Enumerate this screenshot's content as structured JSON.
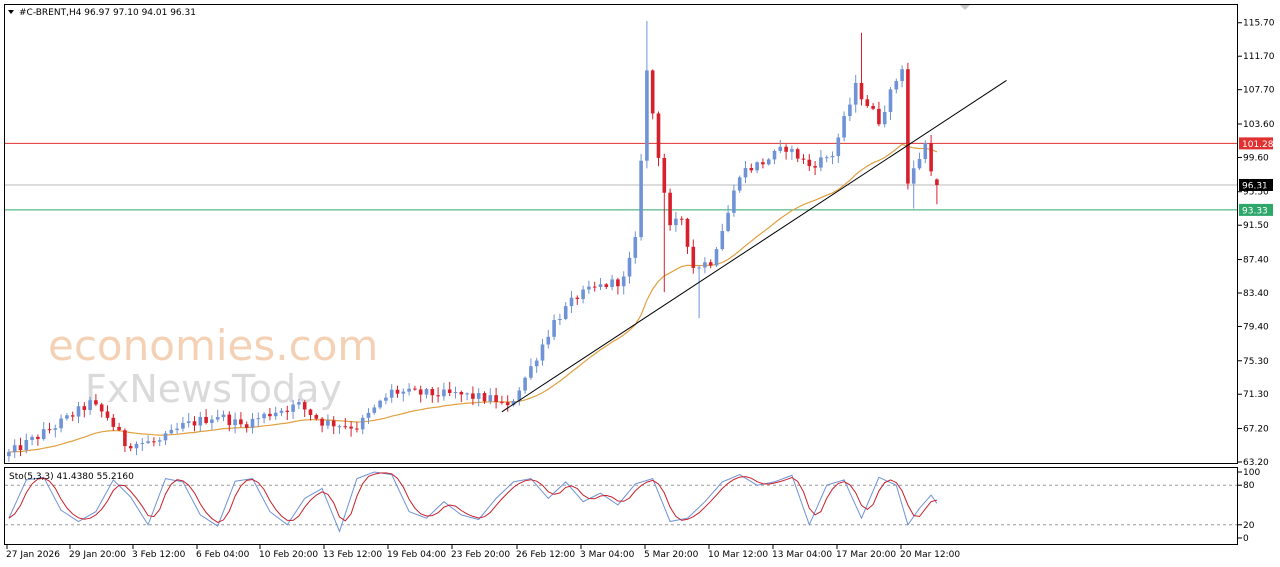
{
  "header": {
    "symbol_line": "#C-BRENT,H4  96.97 97.10 94.01 96.31"
  },
  "watermark": {
    "line1": "economies.com",
    "line2": "FxNewsToday"
  },
  "colors": {
    "bull": "#6f93d6",
    "bear": "#d8202c",
    "ma": "#e0a040",
    "resistance": "#e03030",
    "support": "#2ea86a",
    "price_line": "#b8b8b8",
    "trendline": "#000000",
    "stoch_main": "#6f93d6",
    "stoch_signal": "#c8202c"
  },
  "chart_data": [
    {
      "type": "candlestick",
      "title": "#C-BRENT,H4  96.97 97.10 94.01 96.31",
      "ylim": [
        63.2,
        117.7
      ],
      "y_ticks": [
        "115.70",
        "111.70",
        "107.70",
        "103.60",
        "99.60",
        "95.50",
        "91.50",
        "87.40",
        "83.40",
        "79.40",
        "75.30",
        "71.30",
        "67.20",
        "63.20"
      ],
      "x_ticks": [
        "27 Jan 2026",
        "29 Jan 20:00",
        "3 Feb 12:00",
        "6 Feb 04:00",
        "10 Feb 20:00",
        "13 Feb 12:00",
        "19 Feb 04:00",
        "23 Feb 20:00",
        "26 Feb 12:00",
        "3 Mar 04:00",
        "5 Mar 20:00",
        "10 Mar 12:00",
        "13 Mar 04:00",
        "17 Mar 20:00",
        "20 Mar 12:00"
      ],
      "horizontal_levels": [
        {
          "label": "101.28",
          "value": 101.28,
          "kind": "resistance"
        },
        {
          "label": "96.31",
          "value": 96.31,
          "kind": "current"
        },
        {
          "label": "93.33",
          "value": 93.33,
          "kind": "support"
        }
      ],
      "trendline": {
        "from_index": 85,
        "from_price": 69.2,
        "to_index": 172,
        "to_price": 108.8
      },
      "last": {
        "open": 96.97,
        "high": 97.1,
        "low": 94.01,
        "close": 96.31
      },
      "path": [
        [
          0,
          64.2
        ],
        [
          8,
          67.5
        ],
        [
          14,
          70.2
        ],
        [
          17,
          68.6
        ],
        [
          20,
          65.4
        ],
        [
          26,
          65.6
        ],
        [
          30,
          67.5
        ],
        [
          36,
          68.8
        ],
        [
          40,
          67.6
        ],
        [
          46,
          69.3
        ],
        [
          50,
          70.0
        ],
        [
          54,
          68.0
        ],
        [
          60,
          67.4
        ],
        [
          66,
          71.6
        ],
        [
          70,
          71.4
        ],
        [
          78,
          71.2
        ],
        [
          84,
          70.6
        ],
        [
          86,
          69.6
        ],
        [
          90,
          74.5
        ],
        [
          94,
          80.0
        ],
        [
          98,
          83.0
        ],
        [
          102,
          84.2
        ],
        [
          106,
          85.0
        ],
        [
          108,
          89.5
        ],
        [
          110,
          109.8
        ],
        [
          112,
          100.0
        ],
        [
          114,
          91.0
        ],
        [
          116,
          92.4
        ],
        [
          118,
          86.5
        ],
        [
          121,
          87.2
        ],
        [
          124,
          93.0
        ],
        [
          126,
          97.8
        ],
        [
          130,
          99.0
        ],
        [
          134,
          100.8
        ],
        [
          138,
          98.6
        ],
        [
          142,
          100.0
        ],
        [
          146,
          108.0
        ],
        [
          150,
          104.0
        ],
        [
          154,
          110.5
        ],
        [
          155,
          96.5
        ],
        [
          158,
          101.2
        ],
        [
          160,
          95.8
        ]
      ]
    },
    {
      "type": "line",
      "title": "Sto(5,3,3) 41.4380 55.2160",
      "ylim": [
        0,
        100
      ],
      "y_ticks": [
        "100",
        "80",
        "20",
        "0"
      ],
      "levels": [
        80,
        20
      ],
      "series": [
        {
          "name": "main",
          "last": 41.438
        },
        {
          "name": "signal",
          "last": 55.216
        }
      ],
      "main_path": [
        [
          0,
          30
        ],
        [
          3,
          88
        ],
        [
          6,
          92
        ],
        [
          9,
          42
        ],
        [
          12,
          25
        ],
        [
          15,
          40
        ],
        [
          18,
          88
        ],
        [
          21,
          62
        ],
        [
          24,
          20
        ],
        [
          27,
          90
        ],
        [
          30,
          85
        ],
        [
          33,
          35
        ],
        [
          36,
          18
        ],
        [
          39,
          86
        ],
        [
          42,
          90
        ],
        [
          45,
          40
        ],
        [
          48,
          20
        ],
        [
          51,
          60
        ],
        [
          54,
          75
        ],
        [
          57,
          10
        ],
        [
          60,
          90
        ],
        [
          63,
          100
        ],
        [
          66,
          96
        ],
        [
          69,
          40
        ],
        [
          72,
          30
        ],
        [
          75,
          55
        ],
        [
          78,
          35
        ],
        [
          81,
          28
        ],
        [
          84,
          60
        ],
        [
          87,
          85
        ],
        [
          90,
          90
        ],
        [
          93,
          60
        ],
        [
          96,
          85
        ],
        [
          99,
          55
        ],
        [
          102,
          68
        ],
        [
          105,
          50
        ],
        [
          108,
          82
        ],
        [
          111,
          90
        ],
        [
          114,
          25
        ],
        [
          117,
          30
        ],
        [
          120,
          55
        ],
        [
          123,
          85
        ],
        [
          126,
          96
        ],
        [
          129,
          80
        ],
        [
          132,
          85
        ],
        [
          135,
          95
        ],
        [
          138,
          20
        ],
        [
          141,
          80
        ],
        [
          144,
          88
        ],
        [
          147,
          30
        ],
        [
          150,
          92
        ],
        [
          153,
          80
        ],
        [
          155,
          20
        ],
        [
          157,
          45
        ],
        [
          159,
          65
        ],
        [
          161,
          40
        ]
      ]
    }
  ]
}
